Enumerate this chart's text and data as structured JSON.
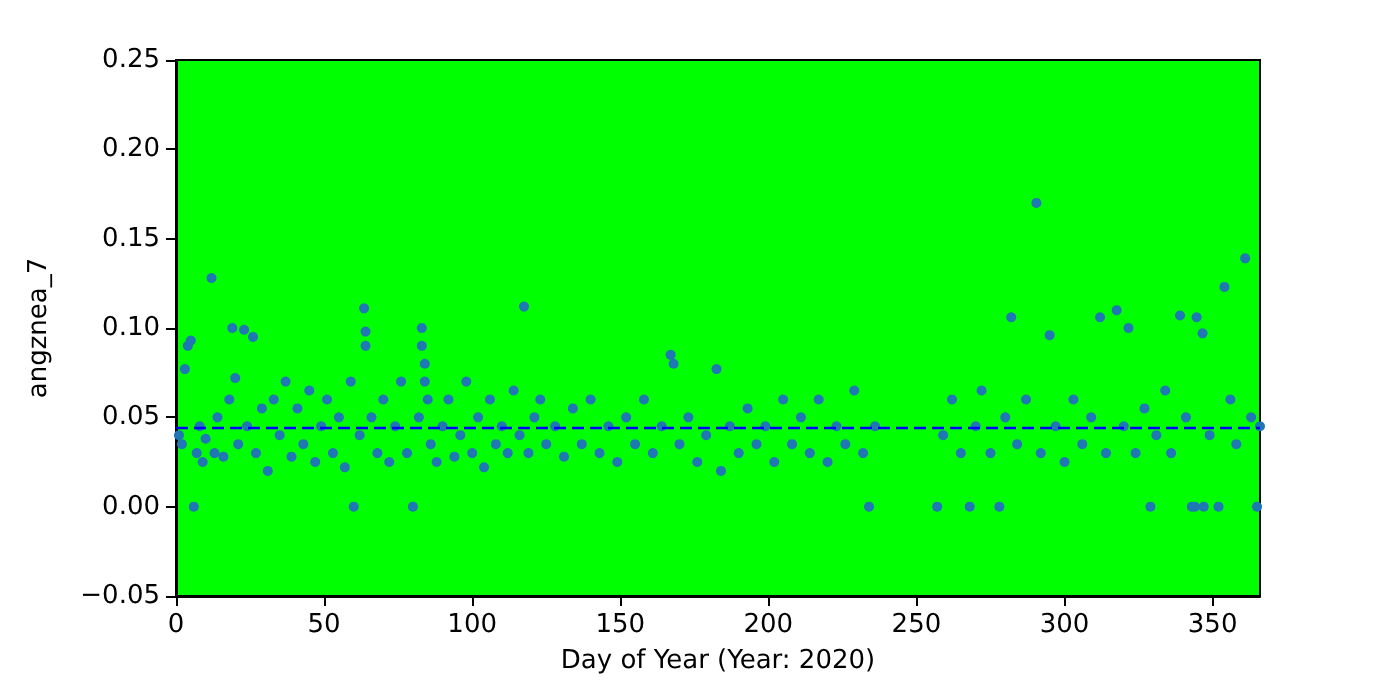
{
  "chart_data": {
    "type": "scatter",
    "xlabel": "Day of Year (Year: 2020)",
    "ylabel": "angznea_7",
    "xlim": [
      0,
      366
    ],
    "xticks": [
      0,
      50,
      100,
      150,
      200,
      250,
      300,
      350
    ],
    "ylim": [
      -0.05,
      0.25
    ],
    "yticks": [
      {
        "value": -0.05,
        "label": "−0.05"
      },
      {
        "value": 0,
        "label": "0.00"
      },
      {
        "value": 0.05,
        "label": "0.05"
      },
      {
        "value": 0.1,
        "label": "0.10"
      },
      {
        "value": 0.15,
        "label": "0.15"
      },
      {
        "value": 0.2,
        "label": "0.20"
      },
      {
        "value": 0.25,
        "label": "0.25"
      }
    ],
    "grid": false,
    "marker": "circle",
    "ref_lines": [
      {
        "axis": "y",
        "value": 0.044,
        "color": "#0000ff",
        "line_style": "dashed"
      }
    ],
    "series": [
      {
        "color": "#1f77b4",
        "x": [
          1,
          2,
          3,
          4,
          5,
          6,
          7,
          8,
          9,
          10,
          12,
          13,
          14,
          16,
          18,
          19,
          20,
          21,
          23,
          24,
          26,
          27,
          29,
          31,
          33,
          35,
          37,
          39,
          41,
          43,
          45,
          47,
          49,
          51,
          53,
          55,
          57,
          59,
          60,
          62,
          63.5,
          64,
          64,
          66,
          68,
          70,
          72,
          74,
          76,
          78,
          80,
          82,
          83,
          83,
          84,
          84,
          85,
          86,
          88,
          90,
          92,
          94,
          96,
          98,
          100,
          102,
          104,
          106,
          108,
          110,
          112,
          114,
          116,
          117.5,
          119,
          121,
          123,
          125,
          128,
          131,
          134,
          137,
          140,
          143,
          146,
          149,
          152,
          155,
          158,
          161,
          164,
          167,
          168,
          170,
          173,
          176,
          179,
          182.5,
          184,
          187,
          190,
          193,
          196,
          199,
          202,
          205,
          208,
          211,
          214,
          217,
          220,
          223,
          226,
          229,
          232,
          234,
          236,
          257,
          259,
          262,
          265,
          268,
          270,
          272,
          275,
          278,
          280,
          282,
          284,
          287,
          290.5,
          292,
          295,
          297,
          300,
          303,
          306,
          309,
          312,
          314,
          317.6,
          320,
          321.6,
          324,
          327,
          329,
          331,
          334,
          336,
          339,
          341,
          343,
          344,
          344.6,
          346.6,
          347,
          349,
          352,
          354,
          356,
          358,
          361,
          363,
          365,
          366
        ],
        "values": [
          0.04,
          0.035,
          0.077,
          0.09,
          0.093,
          0.0,
          0.03,
          0.045,
          0.025,
          0.038,
          0.128,
          0.03,
          0.05,
          0.028,
          0.06,
          0.1,
          0.072,
          0.035,
          0.099,
          0.045,
          0.095,
          0.03,
          0.055,
          0.02,
          0.06,
          0.04,
          0.07,
          0.028,
          0.055,
          0.035,
          0.065,
          0.025,
          0.045,
          0.06,
          0.03,
          0.05,
          0.022,
          0.07,
          0.0,
          0.04,
          0.111,
          0.098,
          0.09,
          0.05,
          0.03,
          0.06,
          0.025,
          0.045,
          0.07,
          0.03,
          0.0,
          0.05,
          0.1,
          0.09,
          0.08,
          0.07,
          0.06,
          0.035,
          0.025,
          0.045,
          0.06,
          0.028,
          0.04,
          0.07,
          0.03,
          0.05,
          0.022,
          0.06,
          0.035,
          0.045,
          0.03,
          0.065,
          0.04,
          0.112,
          0.03,
          0.05,
          0.06,
          0.035,
          0.045,
          0.028,
          0.055,
          0.035,
          0.06,
          0.03,
          0.045,
          0.025,
          0.05,
          0.035,
          0.06,
          0.03,
          0.045,
          0.085,
          0.08,
          0.035,
          0.05,
          0.025,
          0.04,
          0.077,
          0.02,
          0.045,
          0.03,
          0.055,
          0.035,
          0.045,
          0.025,
          0.06,
          0.035,
          0.05,
          0.03,
          0.06,
          0.025,
          0.045,
          0.035,
          0.065,
          0.03,
          0.0,
          0.045,
          0.0,
          0.04,
          0.06,
          0.03,
          0.0,
          0.045,
          0.065,
          0.03,
          0.0,
          0.05,
          0.106,
          0.035,
          0.06,
          0.17,
          0.03,
          0.096,
          0.045,
          0.025,
          0.06,
          0.035,
          0.05,
          0.106,
          0.03,
          0.11,
          0.045,
          0.1,
          0.03,
          0.055,
          0.0,
          0.04,
          0.065,
          0.03,
          0.107,
          0.05,
          0.0,
          0.0,
          0.106,
          0.097,
          0.0,
          0.04,
          0.0,
          0.123,
          0.06,
          0.035,
          0.139,
          0.05,
          0.0,
          0.045
        ]
      }
    ]
  }
}
